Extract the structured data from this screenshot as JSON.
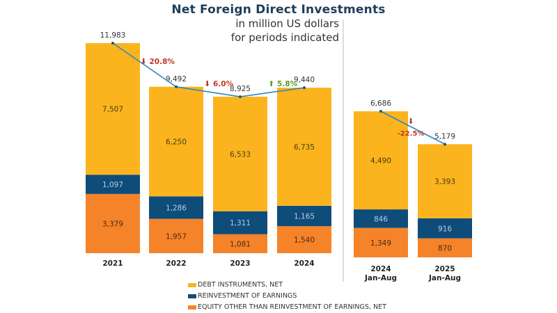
{
  "chart_data": {
    "type": "bar",
    "stacked": true,
    "title": "Net Foreign Direct Investments",
    "subtitle": [
      "in million US dollars",
      "for periods indicated"
    ],
    "panels": [
      {
        "name": "annual",
        "categories": [
          "2021",
          "2022",
          "2023",
          "2024"
        ],
        "totals": [
          11983,
          9492,
          8925,
          9440
        ],
        "changes": [
          {
            "between": [
              "2021",
              "2022"
            ],
            "direction": "down",
            "label": "20.8%"
          },
          {
            "between": [
              "2022",
              "2023"
            ],
            "direction": "down",
            "label": "6.0%"
          },
          {
            "between": [
              "2023",
              "2024"
            ],
            "direction": "up",
            "label": "5.8%"
          }
        ]
      },
      {
        "name": "jan-aug",
        "categories": [
          "2024\nJan-Aug",
          "2025\nJan-Aug"
        ],
        "totals": [
          6686,
          5179
        ],
        "changes": [
          {
            "between": [
              "2024 Jan-Aug",
              "2025 Jan-Aug"
            ],
            "direction": "down",
            "label": "-22.5%"
          }
        ]
      }
    ],
    "series": [
      {
        "name": "DEBT INSTRUMENTS, NET",
        "color": "#fbb41e",
        "label_color": "#4a3a10",
        "values_annual": [
          7507,
          6250,
          6533,
          6735
        ],
        "values_janaug": [
          4490,
          3393
        ]
      },
      {
        "name": "REINVESTMENT OF EARNINGS",
        "color": "#0e4c7a",
        "label_color": "#b8cde0",
        "values_annual": [
          1097,
          1286,
          1311,
          1165
        ],
        "values_janaug": [
          846,
          916
        ]
      },
      {
        "name": "EQUITY OTHER THAN REINVESTMENT OF EARNINGS, NET",
        "color": "#f5832a",
        "label_color": "#4a2a10",
        "values_annual": [
          3379,
          1957,
          1081,
          1540
        ],
        "values_janaug": [
          1349,
          870
        ]
      }
    ],
    "line_color": "#2e86c1",
    "down_color": "#c0392b",
    "up_color": "#5c9e2e",
    "legend_position": "bottom-center",
    "grid": false
  }
}
